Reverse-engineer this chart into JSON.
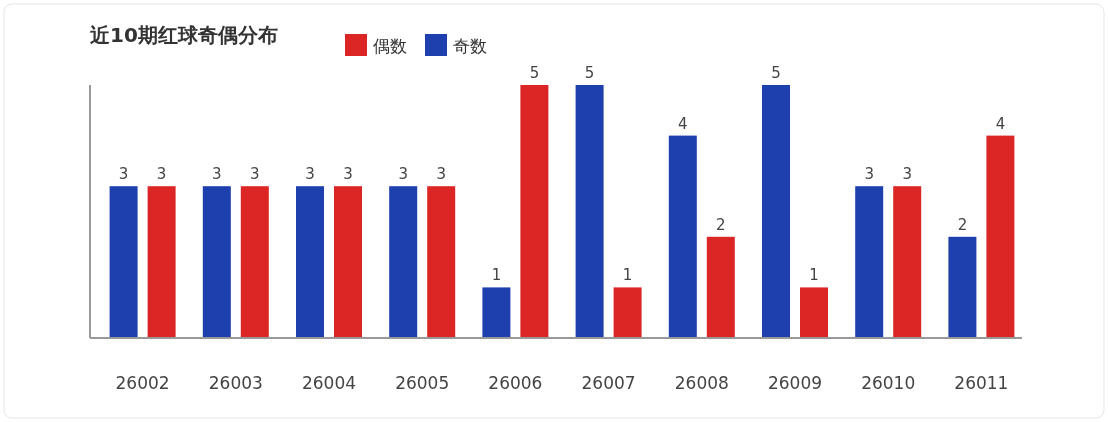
{
  "chart_data": {
    "type": "bar",
    "title": "近10期红球奇偶分布",
    "categories": [
      "26002",
      "26003",
      "26004",
      "26005",
      "26006",
      "26007",
      "26008",
      "26009",
      "26010",
      "26011"
    ],
    "series": [
      {
        "name": "偶数",
        "color": "#dc2626",
        "values": [
          3,
          3,
          3,
          3,
          5,
          1,
          2,
          1,
          3,
          4
        ]
      },
      {
        "name": "奇数",
        "color": "#1e40af",
        "values": [
          3,
          3,
          3,
          3,
          1,
          5,
          4,
          5,
          3,
          2
        ]
      }
    ],
    "data_labels": true,
    "legend": "top",
    "grid": false
  }
}
